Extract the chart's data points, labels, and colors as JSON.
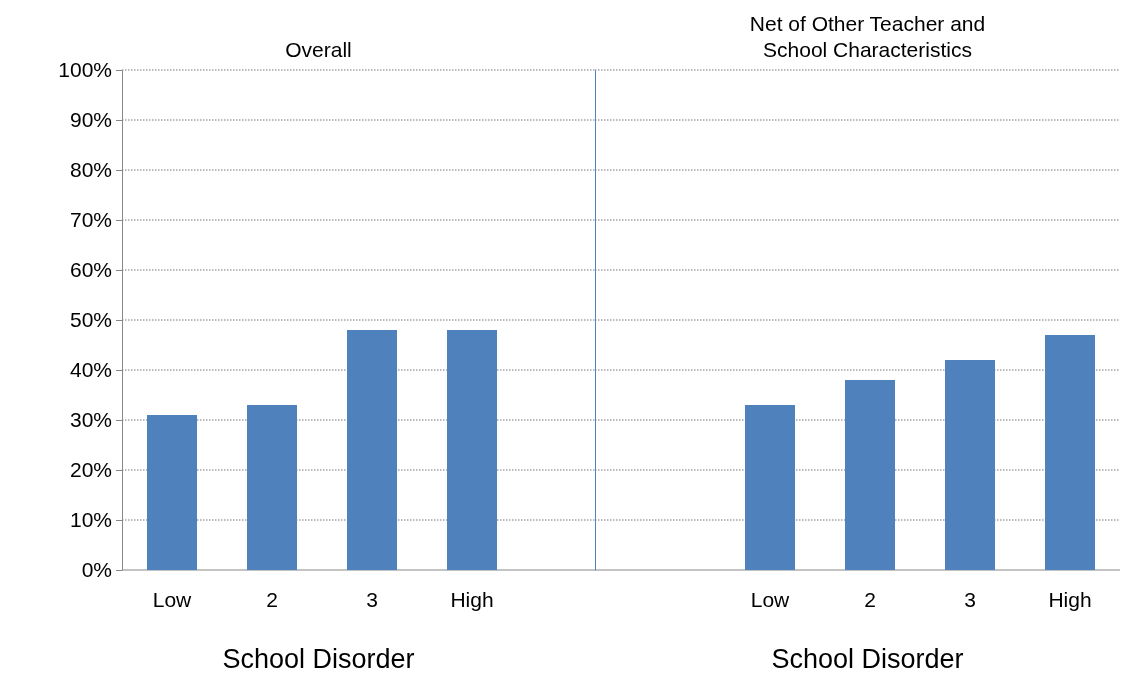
{
  "chart_data": [
    {
      "type": "bar",
      "title": "Overall",
      "xlabel": "School Disorder",
      "categories": [
        "Low",
        "2",
        "3",
        "High"
      ],
      "values": [
        31,
        33,
        48,
        48
      ],
      "color": "#4f81bd",
      "ylim": [
        0,
        100
      ],
      "yticks": [
        {
          "value": 0,
          "label": "0%"
        },
        {
          "value": 10,
          "label": "10%"
        },
        {
          "value": 20,
          "label": "20%"
        },
        {
          "value": 30,
          "label": "30%"
        },
        {
          "value": 40,
          "label": "40%"
        },
        {
          "value": 50,
          "label": "50%"
        },
        {
          "value": 60,
          "label": "60%"
        },
        {
          "value": 70,
          "label": "70%"
        },
        {
          "value": 80,
          "label": "80%"
        },
        {
          "value": 90,
          "label": "90%"
        },
        {
          "value": 100,
          "label": "100%"
        }
      ],
      "grid": "y"
    },
    {
      "type": "bar",
      "title": "Net of Other Teacher and School Characteristics",
      "xlabel": "School Disorder",
      "categories": [
        "Low",
        "2",
        "3",
        "High"
      ],
      "values": [
        33,
        38,
        42,
        47
      ],
      "color": "#4f81bd",
      "ylim": [
        0,
        100
      ],
      "yticks": [
        0,
        10,
        20,
        30,
        40,
        50,
        60,
        70,
        80,
        90,
        100
      ],
      "grid": "y",
      "tick_labels": "x"
    }
  ]
}
